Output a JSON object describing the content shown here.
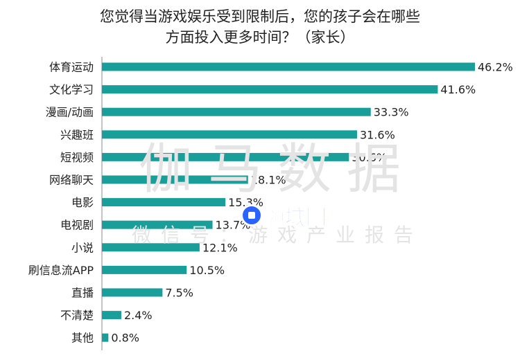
{
  "title": [
    "您觉得当游戏娱乐受到限制后，您的孩子会在哪些",
    "方面投入更多时间？（家长）"
  ],
  "watermark": {
    "main": "伽马数据",
    "sub": "微信号：游戏产业报告"
  },
  "overlay_badge": {
    "text": "领域圈",
    "icon": "play-icon",
    "color": "#2a63ff"
  },
  "chart_data": {
    "type": "bar",
    "orientation": "horizontal",
    "categories": [
      "体育运动",
      "文化学习",
      "漫画/动画",
      "兴趣班",
      "短视频",
      "网络聊天",
      "电影",
      "电视剧",
      "小说",
      "刷信息流APP",
      "直播",
      "不清楚",
      "其他"
    ],
    "values": [
      46.2,
      41.6,
      33.3,
      31.6,
      30.6,
      18.1,
      15.3,
      13.7,
      12.1,
      10.5,
      7.5,
      2.4,
      0.8
    ],
    "value_labels": [
      "46.2%",
      "41.6%",
      "33.3%",
      "31.6%",
      "30.6%",
      "18.1%",
      "15.3%",
      "13.7%",
      "12.1%",
      "10.5%",
      "7.5%",
      "2.4%",
      "0.8%"
    ],
    "unit": "%",
    "xlim": [
      0,
      46.2
    ],
    "bar_color": "#1a9e9a",
    "grid": false,
    "legend": "none"
  }
}
